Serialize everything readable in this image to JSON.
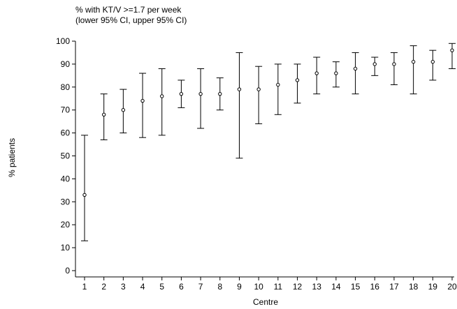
{
  "chart_data": {
    "type": "scatter",
    "title": "% with KT/V >=1.7 per week",
    "subtitle": "(lower 95% CI, upper 95% CI)",
    "xlabel": "Centre",
    "ylabel": "% patients",
    "x": [
      1,
      2,
      3,
      4,
      5,
      6,
      7,
      8,
      9,
      10,
      11,
      12,
      13,
      14,
      15,
      16,
      17,
      18,
      19,
      20
    ],
    "y": [
      33,
      68,
      70,
      74,
      76,
      77,
      77,
      77,
      79,
      79,
      81,
      83,
      86,
      86,
      88,
      90,
      90,
      91,
      91,
      96
    ],
    "lower": [
      13,
      57,
      60,
      58,
      59,
      71,
      62,
      70,
      49,
      64,
      68,
      73,
      77,
      80,
      77,
      85,
      81,
      77,
      83,
      88
    ],
    "upper": [
      59,
      77,
      79,
      86,
      88,
      83,
      88,
      84,
      95,
      89,
      90,
      90,
      93,
      91,
      95,
      93,
      95,
      98,
      96,
      99
    ],
    "ylim": [
      0,
      100
    ],
    "yticks": [
      0,
      10,
      20,
      30,
      40,
      50,
      60,
      70,
      80,
      90,
      100
    ],
    "xticks": [
      1,
      2,
      3,
      4,
      5,
      6,
      7,
      8,
      9,
      10,
      11,
      12,
      13,
      14,
      15,
      16,
      17,
      18,
      19,
      20
    ],
    "grid": false,
    "legend": "none"
  }
}
